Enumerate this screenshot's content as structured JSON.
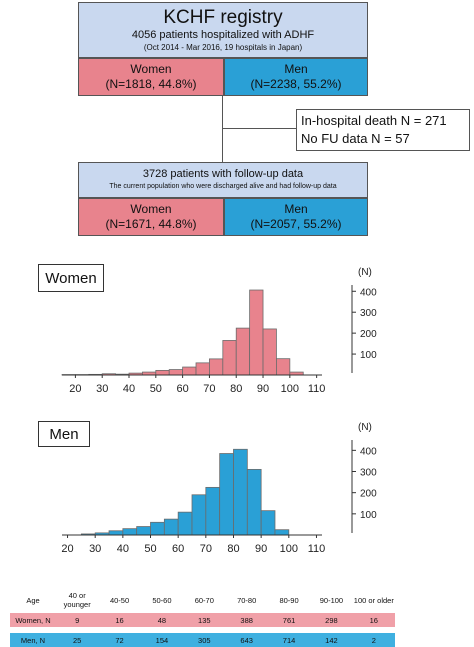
{
  "header": {
    "title": "KCHF registry",
    "subtitle": "4056 patients hospitalized with ADHF",
    "period": "(Oct 2014 - Mar 2016, 19 hospitals in Japan)"
  },
  "top_split": {
    "women_label": "Women",
    "women_stats": "(N=1818, 44.8%)",
    "men_label": "Men",
    "men_stats": "(N=2238, 55.2%)"
  },
  "exclusions": {
    "line1": "In-hospital death N = 271",
    "line2": "No FU data N = 57"
  },
  "followup": {
    "title": "3728 patients with follow-up data",
    "subtitle": "The current population who were discharged alive and had follow-up data"
  },
  "bottom_split": {
    "women_label": "Women",
    "women_stats": "(N=1671, 44.8%)",
    "men_label": "Men",
    "men_stats": "(N=2057, 55.2%)"
  },
  "colors": {
    "women": "#e8838d",
    "men": "#2aa0d6",
    "header_box": "#c9d8ef"
  },
  "chart_data": [
    {
      "type": "bar",
      "label": "Women",
      "ylabel": "(N)",
      "x_ticks": [
        "20",
        "30",
        "40",
        "50",
        "60",
        "70",
        "80",
        "90",
        "100",
        "110"
      ],
      "y_ticks": [
        "100",
        "200",
        "300",
        "400"
      ],
      "bin_width": 5,
      "bins": [
        15,
        20,
        25,
        30,
        35,
        40,
        45,
        50,
        55,
        60,
        65,
        70,
        75,
        80,
        85,
        90,
        95,
        100
      ],
      "values": [
        2,
        2,
        3,
        6,
        4,
        9,
        14,
        22,
        26,
        38,
        58,
        77,
        165,
        224,
        406,
        220,
        78,
        14
      ],
      "xlim": [
        15,
        112
      ],
      "ylim": [
        0,
        430
      ]
    },
    {
      "type": "bar",
      "label": "Men",
      "ylabel": "(N)",
      "x_ticks": [
        "20",
        "30",
        "40",
        "50",
        "60",
        "70",
        "80",
        "90",
        "100",
        "110"
      ],
      "y_ticks": [
        "100",
        "200",
        "300",
        "400"
      ],
      "bin_width": 5,
      "bins": [
        25,
        30,
        35,
        40,
        45,
        50,
        55,
        60,
        65,
        70,
        75,
        80,
        85,
        90,
        95
      ],
      "values": [
        5,
        10,
        20,
        30,
        40,
        60,
        75,
        108,
        190,
        225,
        385,
        405,
        310,
        115,
        25
      ],
      "xlim": [
        18,
        112
      ],
      "ylim": [
        0,
        430
      ]
    }
  ],
  "age_table": {
    "row_headers": [
      "Age",
      "Women, N",
      "Men, N"
    ],
    "columns": [
      "40 or younger",
      "40-50",
      "50-60",
      "60-70",
      "70-80",
      "80-90",
      "90-100",
      "100 or older"
    ],
    "women": [
      "9",
      "16",
      "48",
      "135",
      "388",
      "761",
      "298",
      "16"
    ],
    "men": [
      "25",
      "72",
      "154",
      "305",
      "643",
      "714",
      "142",
      "2"
    ]
  }
}
